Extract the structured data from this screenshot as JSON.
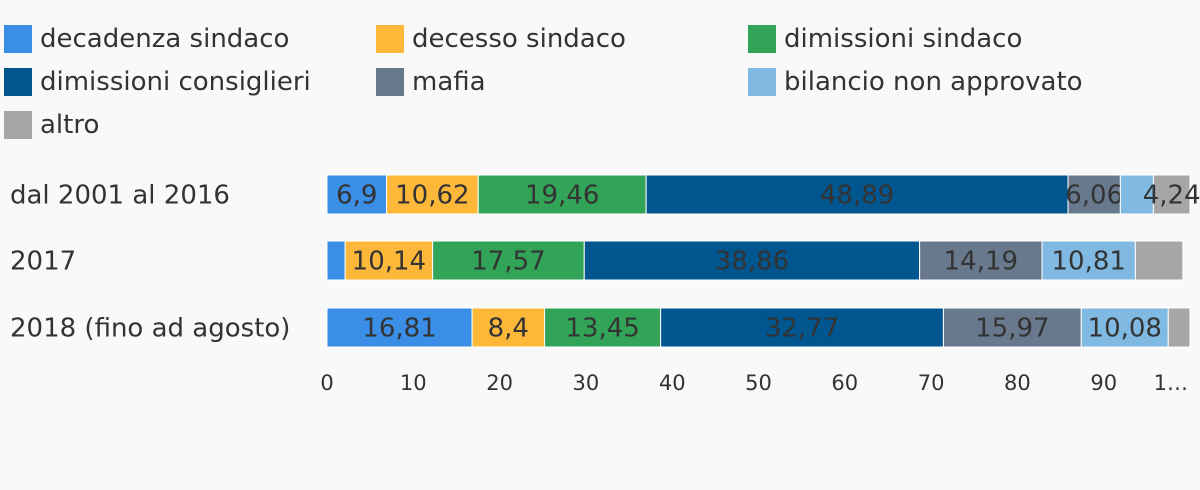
{
  "chart_data": {
    "type": "bar",
    "orientation": "horizontal",
    "stacked": true,
    "categories": [
      "dal 2001 al 2016",
      "2017",
      "2018 (fino ad agosto)"
    ],
    "series": [
      {
        "name": "decadenza sindaco",
        "color": "#3a8ee6",
        "values": [
          6.9,
          2.1,
          16.81
        ],
        "labels": [
          "6,9",
          "",
          "16,81"
        ]
      },
      {
        "name": "decesso sindaco",
        "color": "#fdb83a",
        "values": [
          10.62,
          10.14,
          8.4
        ],
        "labels": [
          "10,62",
          "10,14",
          "8,4"
        ]
      },
      {
        "name": "dimissioni sindaco",
        "color": "#32a457",
        "values": [
          19.46,
          17.57,
          13.45
        ],
        "labels": [
          "19,46",
          "17,57",
          "13,45"
        ]
      },
      {
        "name": "dimissioni consiglieri",
        "color": "#02568f",
        "values": [
          48.89,
          38.86,
          32.77
        ],
        "labels": [
          "48,89",
          "38,86",
          "32,77"
        ]
      },
      {
        "name": "mafia",
        "color": "#68788d",
        "values": [
          6.06,
          14.19,
          15.97
        ],
        "labels": [
          "6,06",
          "14,19",
          "15,97"
        ]
      },
      {
        "name": "bilancio non approvato",
        "color": "#80bae2",
        "values": [
          3.83,
          10.81,
          10.08
        ],
        "labels": [
          "",
          "10,81",
          "10,08"
        ]
      },
      {
        "name": "altro",
        "color": "#a6a6a6",
        "values": [
          4.24,
          5.5,
          2.52
        ],
        "labels": [
          "4,24",
          "",
          ""
        ]
      }
    ],
    "xlim": [
      0,
      100
    ],
    "xticks": [
      "0",
      "10",
      "20",
      "30",
      "40",
      "50",
      "60",
      "70",
      "80",
      "90",
      "1…"
    ],
    "legend_position": "top",
    "grid": false
  }
}
